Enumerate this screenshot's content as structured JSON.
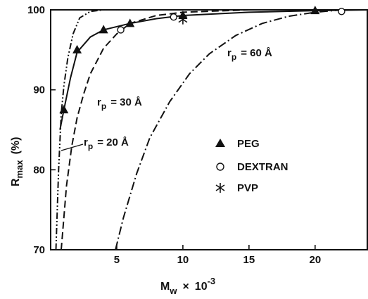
{
  "chart_data": {
    "type": "scatter",
    "title": "",
    "xlabel": "M_w × 10^-3",
    "ylabel": "R_max (%)",
    "xlim": [
      0,
      24
    ],
    "ylim": [
      70,
      100
    ],
    "x_ticks": [
      5,
      10,
      15,
      20
    ],
    "y_ticks": [
      70,
      80,
      90,
      100
    ],
    "grid": false,
    "legend_position": "center-right",
    "series": [
      {
        "name": "PEG",
        "kind": "points",
        "marker": "triangle",
        "points": [
          [
            1,
            87.5
          ],
          [
            2,
            95
          ],
          [
            4,
            97.5
          ],
          [
            6,
            98.3
          ],
          [
            10,
            99.3
          ],
          [
            20,
            99.9
          ]
        ]
      },
      {
        "name": "DEXTRAN",
        "kind": "points",
        "marker": "circle",
        "points": [
          [
            5.3,
            97.5
          ],
          [
            9.3,
            99.1
          ],
          [
            22,
            99.8
          ]
        ]
      },
      {
        "name": "PVP",
        "kind": "points",
        "marker": "star",
        "points": [
          [
            10,
            98.8
          ]
        ]
      },
      {
        "kind": "curve",
        "style": "dash-dot-dot",
        "label_ref": "curve_labels.rp20",
        "points": [
          [
            0.4,
            70
          ],
          [
            0.6,
            80
          ],
          [
            0.8,
            87
          ],
          [
            1.0,
            90.5
          ],
          [
            1.3,
            94
          ],
          [
            1.7,
            97
          ],
          [
            2.2,
            99
          ],
          [
            3.0,
            99.8
          ],
          [
            4.0,
            100
          ],
          [
            5.5,
            100
          ]
        ]
      },
      {
        "kind": "curve",
        "style": "solid",
        "label_ref": "curve_labels.rp30",
        "points": [
          [
            0.7,
            85
          ],
          [
            1.0,
            87.5
          ],
          [
            1.5,
            91.5
          ],
          [
            2.0,
            94.7
          ],
          [
            3.0,
            96.6
          ],
          [
            4.0,
            97.5
          ],
          [
            6.0,
            98.3
          ],
          [
            8.0,
            98.9
          ],
          [
            10.0,
            99.3
          ],
          [
            15.0,
            99.7
          ],
          [
            20.0,
            99.9
          ],
          [
            24.0,
            100
          ]
        ]
      },
      {
        "kind": "curve",
        "style": "dashed",
        "label_ref": "curve_labels.rp30",
        "points": [
          [
            0.8,
            70
          ],
          [
            1.2,
            78
          ],
          [
            1.6,
            83
          ],
          [
            2.0,
            86.5
          ],
          [
            2.5,
            89.5
          ],
          [
            3.0,
            92
          ],
          [
            4.0,
            95.2
          ],
          [
            5.0,
            97
          ],
          [
            6.0,
            98.3
          ],
          [
            8.0,
            99.3
          ],
          [
            10.0,
            99.7
          ],
          [
            15.0,
            100
          ],
          [
            24.0,
            100
          ]
        ]
      },
      {
        "kind": "curve",
        "style": "dash-dot",
        "label_ref": "curve_labels.rp60",
        "points": [
          [
            4.9,
            70
          ],
          [
            5.5,
            74
          ],
          [
            6.5,
            79.5
          ],
          [
            7.5,
            84
          ],
          [
            9.0,
            88.5
          ],
          [
            10.5,
            92
          ],
          [
            12.0,
            94.5
          ],
          [
            14.0,
            96.8
          ],
          [
            16.0,
            98.3
          ],
          [
            18.0,
            99.2
          ],
          [
            20.0,
            99.7
          ],
          [
            22.0,
            100
          ],
          [
            24.0,
            100
          ]
        ]
      }
    ],
    "curve_labels": {
      "rp20": {
        "r": "r",
        "sub": "p",
        "value": "= 20 Å"
      },
      "rp30": {
        "r": "r",
        "sub": "p",
        "value": "= 30 Å"
      },
      "rp60": {
        "r": "r",
        "sub": "p",
        "value": "= 60 Å"
      }
    },
    "axis_text": {
      "ylabel_main": "R",
      "ylabel_sub": "max",
      "ylabel_unit": "(%)",
      "xlabel_main": "M",
      "xlabel_sub": "w",
      "xlabel_times": "×",
      "xlabel_base": "10",
      "xlabel_exp": "-3"
    }
  }
}
